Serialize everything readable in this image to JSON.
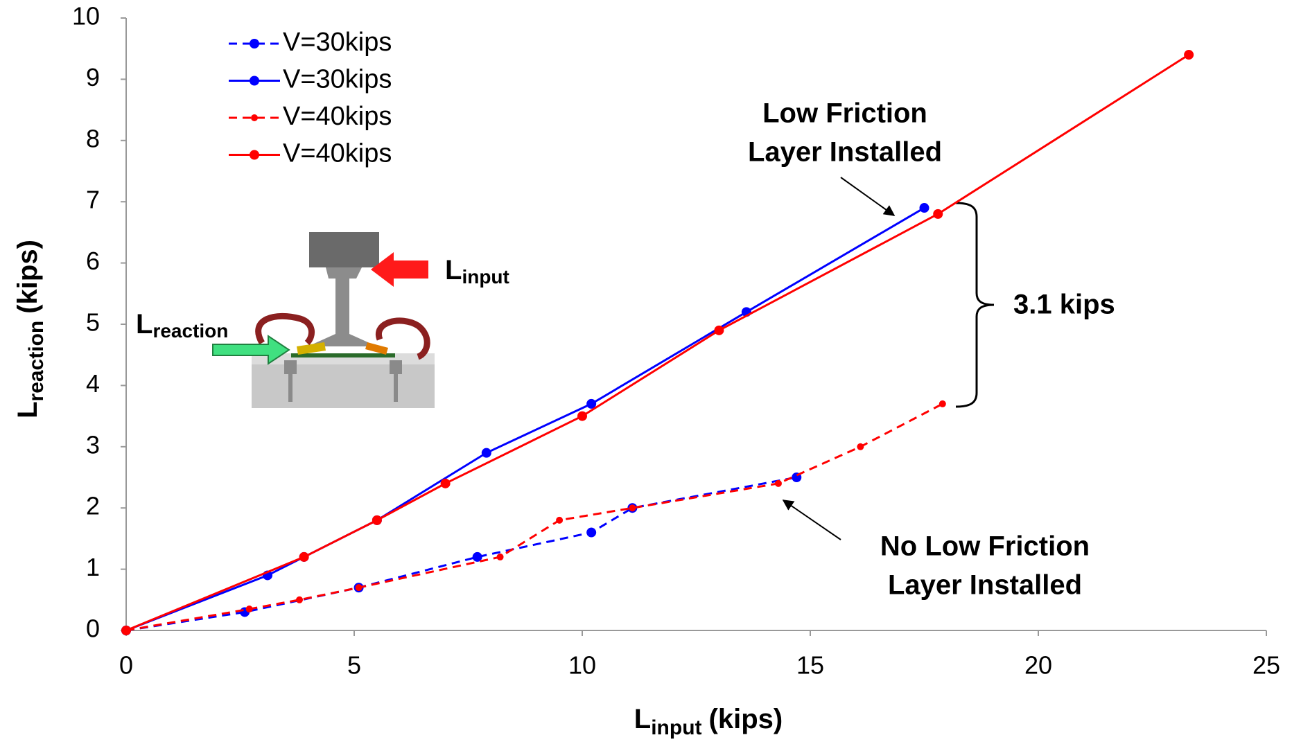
{
  "chart_data": {
    "type": "line",
    "x_label": {
      "main": "L",
      "sub": "input",
      "unit": "(kips)"
    },
    "y_label": {
      "main": "L",
      "sub": "reaction",
      "unit": "(kips)"
    },
    "xlim": [
      0,
      25
    ],
    "xticks": [
      0,
      5,
      10,
      15,
      20,
      25
    ],
    "ylim": [
      0,
      10
    ],
    "yticks": [
      0,
      1,
      2,
      3,
      4,
      5,
      6,
      7,
      8,
      9,
      10
    ],
    "legend": "upper left",
    "series": [
      {
        "name": "V=30kips",
        "color": "#0000ff",
        "dashed": true,
        "x": [
          0,
          2.6,
          5.1,
          7.7,
          10.2,
          11.1,
          14.7
        ],
        "values": [
          0,
          0.3,
          0.7,
          1.2,
          1.6,
          2.0,
          2.5
        ]
      },
      {
        "name": "V=30kips",
        "color": "#0000ff",
        "dashed": false,
        "x": [
          0,
          3.1,
          3.9,
          5.5,
          7.9,
          10.2,
          13.6,
          17.5
        ],
        "values": [
          0,
          0.9,
          1.2,
          1.8,
          2.9,
          3.7,
          5.2,
          6.9
        ]
      },
      {
        "name": "V=40kips",
        "color": "#ff0000",
        "dashed": true,
        "x": [
          0,
          2.7,
          3.8,
          5.1,
          8.2,
          9.5,
          11.1,
          14.3,
          16.1,
          17.9
        ],
        "values": [
          0,
          0.35,
          0.5,
          0.7,
          1.2,
          1.8,
          2.0,
          2.4,
          3.0,
          3.7
        ]
      },
      {
        "name": "V=40kips",
        "color": "#ff0000",
        "dashed": false,
        "x": [
          0,
          3.9,
          5.5,
          7.0,
          10.0,
          13.0,
          17.8,
          23.3
        ],
        "values": [
          0,
          1.2,
          1.8,
          2.4,
          3.5,
          4.9,
          6.8,
          9.4
        ]
      }
    ],
    "annotations": {
      "low_friction": [
        "Low Friction",
        "Layer Installed"
      ],
      "difference": "3.1 kips",
      "no_low_friction": [
        "No Low Friction",
        "Layer Installed"
      ]
    },
    "inset": {
      "input_label": {
        "main": "L",
        "sub": "input"
      },
      "reaction_label": {
        "main": "L",
        "sub": "reaction"
      }
    }
  }
}
